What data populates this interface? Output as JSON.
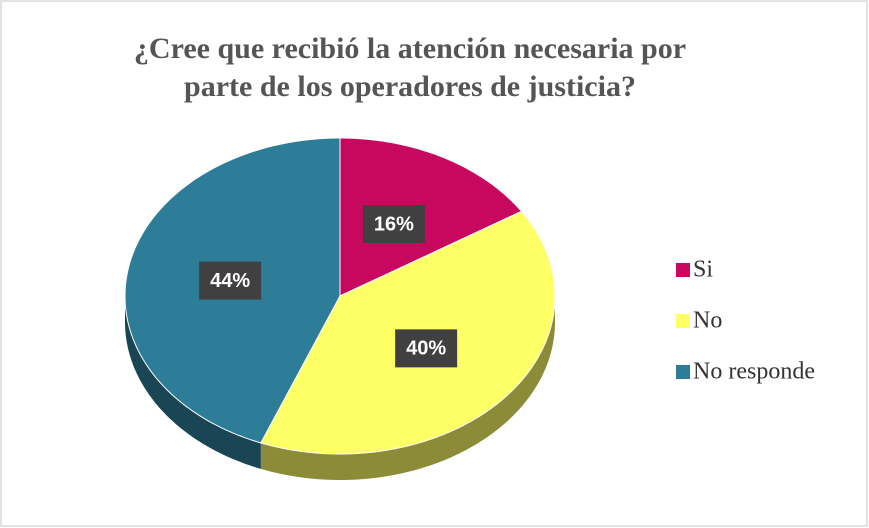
{
  "chart_data": {
    "type": "pie",
    "title": "¿Cree que recibió la atención necesaria por parte de los operadores de justicia?",
    "categories": [
      "Si",
      "No",
      "No responde"
    ],
    "values": [
      16,
      40,
      44
    ],
    "value_labels": [
      "16%",
      "40%",
      "44%"
    ],
    "colors": [
      "#c8085e",
      "#ffff66",
      "#2e7d98"
    ],
    "legend": "right"
  }
}
